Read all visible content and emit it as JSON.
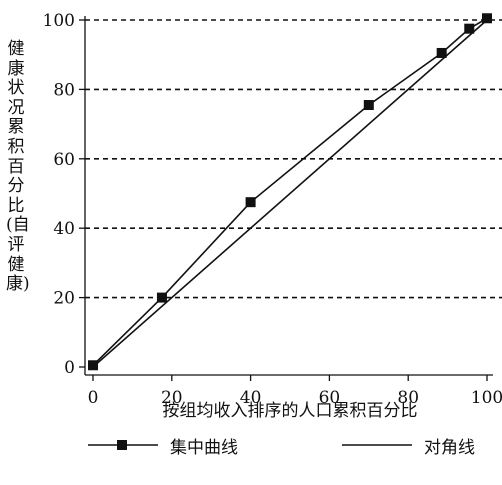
{
  "chart_data": {
    "type": "line",
    "x": [
      0,
      17.5,
      40,
      70,
      88.5,
      95.5,
      100
    ],
    "series": [
      {
        "name": "集中曲线",
        "x": [
          0,
          17.5,
          40,
          70,
          88.5,
          95.5,
          100
        ],
        "values": [
          0.5,
          20,
          47.5,
          75.5,
          90.5,
          97.5,
          100.5
        ],
        "marker": "square",
        "color": "#111111"
      },
      {
        "name": "对角线",
        "x": [
          0,
          100
        ],
        "values": [
          0,
          100
        ],
        "marker": "none",
        "color": "#111111"
      }
    ],
    "xlabel": "按组均收入排序的人口累积百分比",
    "ylabel": "健康状况累积百分比(自评健康)",
    "xlim": [
      0,
      100
    ],
    "ylim": [
      0,
      100
    ],
    "xticks": [
      0,
      20,
      40,
      60,
      80,
      100
    ],
    "yticks": [
      0,
      20,
      40,
      60,
      80,
      100
    ],
    "grid": "horizontal-dashed",
    "legend": "bottom"
  }
}
